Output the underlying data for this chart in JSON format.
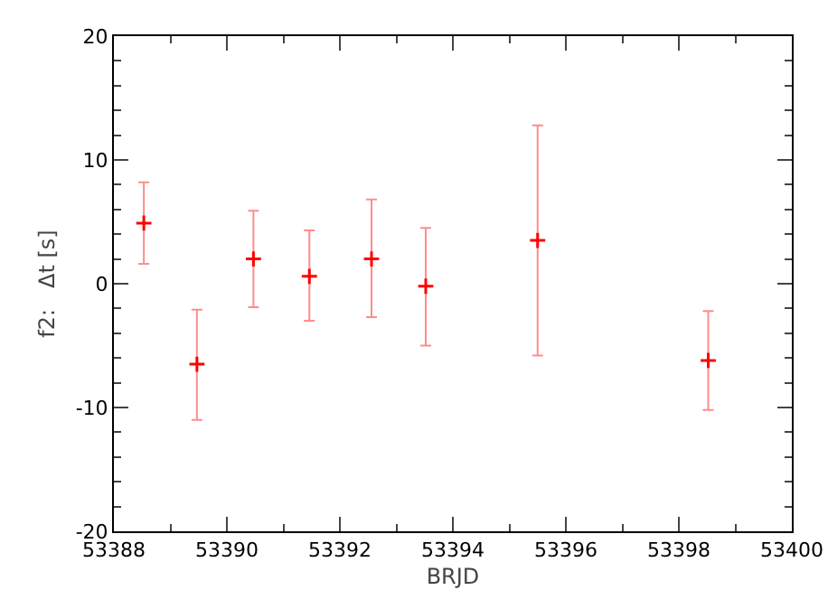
{
  "chart_data": {
    "type": "scatter",
    "xlabel": "BRJD",
    "ylabel": "f2:   Δt [s]",
    "x": [
      53388.53,
      53389.47,
      53390.47,
      53391.46,
      53392.56,
      53393.52,
      53395.5,
      53398.52
    ],
    "series": [
      {
        "color": "#ff0000",
        "values": [
          4.9,
          -6.5,
          2.0,
          0.6,
          2.0,
          -0.2,
          3.5,
          -6.2
        ],
        "errors": [
          [
            1.6,
            8.2
          ],
          [
            -11.0,
            -2.1
          ],
          [
            -1.9,
            5.9
          ],
          [
            -3.0,
            4.3
          ],
          [
            -2.7,
            6.8
          ],
          [
            -5.0,
            4.5
          ],
          [
            -5.8,
            12.8
          ],
          [
            -10.2,
            -2.2
          ]
        ]
      }
    ],
    "xlim": [
      53388,
      53400
    ],
    "xticks": [
      53388,
      53390,
      53392,
      53394,
      53396,
      53398,
      53400
    ],
    "ylim": [
      -20,
      20
    ],
    "yticks": [
      -20,
      -10,
      0,
      10,
      20
    ],
    "grid": false,
    "marker": "cross"
  }
}
